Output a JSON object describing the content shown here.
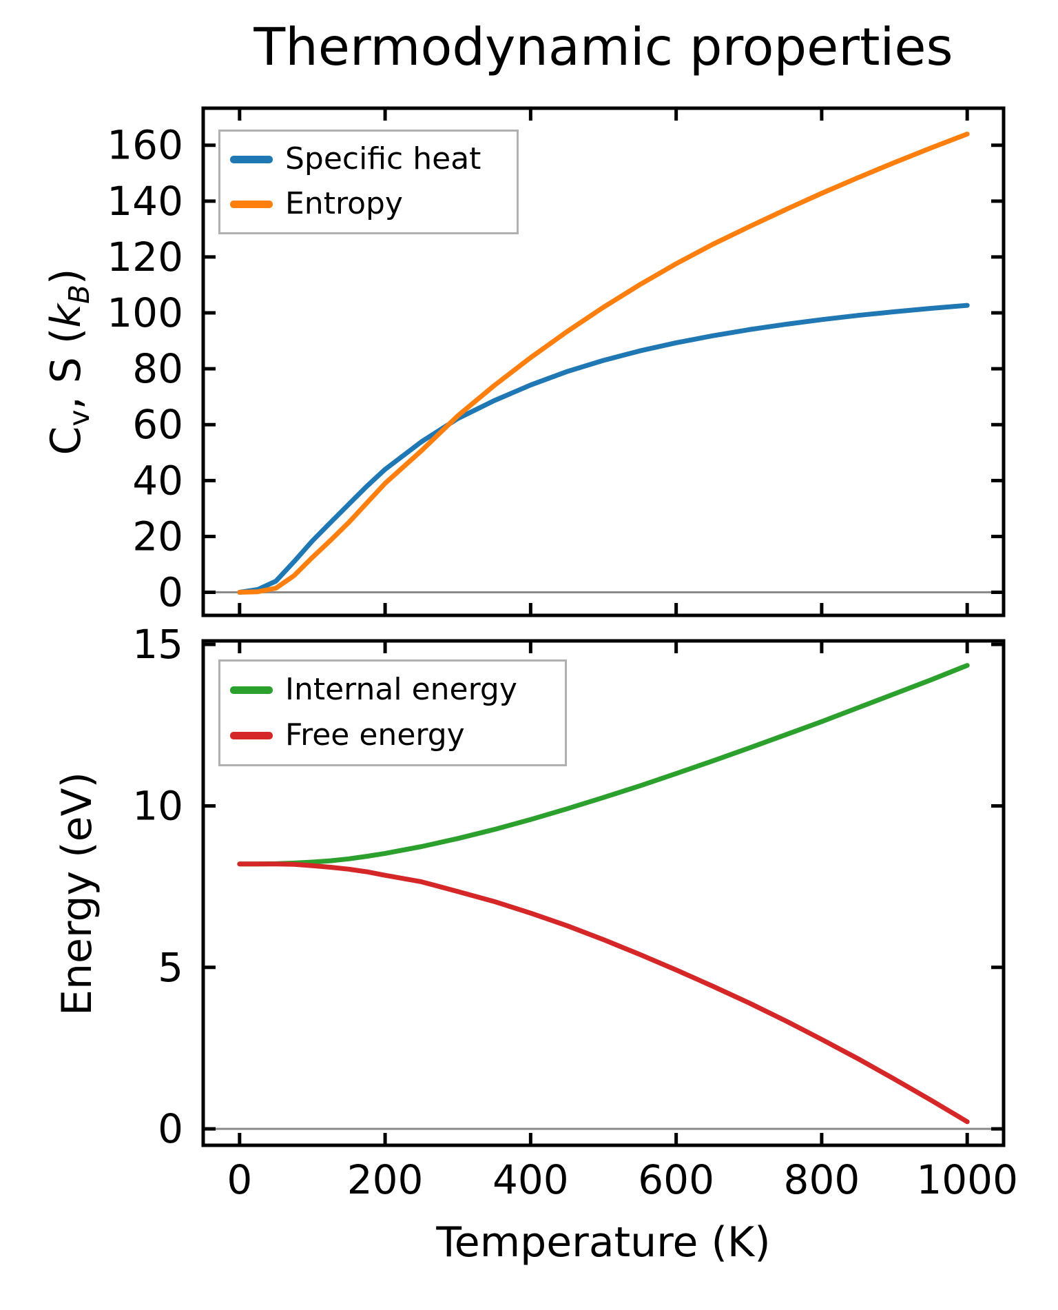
{
  "figure": {
    "title": "Thermodynamic properties",
    "xlabel": "Temperature (K)",
    "background": "#ffffff",
    "spine_color": "#000000",
    "zero_line_color": "#8a8a8a"
  },
  "ylabel_top": {
    "base": "C",
    "base_sub": "v",
    "mid": ", S (",
    "symbol": "k",
    "symbol_sub": "B",
    "close": ")"
  },
  "ylabel_bottom": "Energy (eV)",
  "chart_data": [
    {
      "type": "line",
      "title": "Thermodynamic properties",
      "xlabel": "Temperature (K)",
      "ylabel": "Cv, S (kB)",
      "x": [
        0,
        25,
        50,
        75,
        100,
        125,
        150,
        175,
        200,
        250,
        300,
        350,
        400,
        450,
        500,
        550,
        600,
        650,
        700,
        750,
        800,
        850,
        900,
        950,
        1000
      ],
      "series": [
        {
          "name": "Specific heat",
          "color": "#1f77b4",
          "values": [
            0,
            1,
            4,
            11,
            18.4,
            25,
            31.5,
            38,
            44,
            53.9,
            62.2,
            68.6,
            74.2,
            79,
            83,
            86.4,
            89.3,
            91.8,
            94,
            95.9,
            97.6,
            99.1,
            100.4,
            101.6,
            102.7
          ]
        },
        {
          "name": "Entropy",
          "color": "#ff7f0e",
          "values": [
            0,
            0.2,
            1.5,
            6,
            12.5,
            18.6,
            25,
            32,
            39,
            50.7,
            63.2,
            74,
            84,
            93.3,
            102,
            110.1,
            117.6,
            124.5,
            130.8,
            136.9,
            142.8,
            148.4,
            153.8,
            159,
            164
          ]
        }
      ],
      "xlim": [
        -50,
        1050
      ],
      "ylim": [
        -8.25,
        173.25
      ],
      "xticks": [
        0,
        200,
        400,
        600,
        800,
        1000
      ],
      "yticks": [
        0,
        20,
        40,
        60,
        80,
        100,
        120,
        140,
        160
      ],
      "x_tick_labels_visible": false,
      "grid": false,
      "zero_line": true,
      "legend_position": "upper left",
      "legend_entries": [
        "Specific heat",
        "Entropy"
      ],
      "crossing_point_note": "curves cross near T=293 K at about 61.5 kB"
    },
    {
      "type": "line",
      "title": "",
      "xlabel": "Temperature (K)",
      "ylabel": "Energy (eV)",
      "x": [
        0,
        25,
        50,
        75,
        100,
        125,
        150,
        175,
        200,
        250,
        300,
        350,
        400,
        450,
        500,
        550,
        600,
        650,
        700,
        750,
        800,
        850,
        900,
        950,
        1000
      ],
      "series": [
        {
          "name": "Internal energy",
          "color": "#2ca02c",
          "values": [
            8.2,
            8.2,
            8.21,
            8.23,
            8.26,
            8.3,
            8.36,
            8.44,
            8.53,
            8.74,
            8.99,
            9.27,
            9.58,
            9.91,
            10.26,
            10.62,
            11.0,
            11.39,
            11.79,
            12.2,
            12.61,
            13.04,
            13.47,
            13.9,
            14.35
          ]
        },
        {
          "name": "Free energy",
          "color": "#d62728",
          "values": [
            8.2,
            8.2,
            8.2,
            8.19,
            8.15,
            8.1,
            8.04,
            7.96,
            7.85,
            7.65,
            7.35,
            7.04,
            6.68,
            6.29,
            5.86,
            5.4,
            4.92,
            4.42,
            3.9,
            3.35,
            2.77,
            2.17,
            1.54,
            0.89,
            0.22
          ]
        }
      ],
      "xlim": [
        -50,
        1050
      ],
      "ylim": [
        -0.51,
        15.11
      ],
      "xticks": [
        0,
        200,
        400,
        600,
        800,
        1000
      ],
      "yticks": [
        0,
        5,
        10,
        15
      ],
      "x_tick_labels_visible": true,
      "grid": false,
      "zero_line": true,
      "legend_position": "upper left",
      "legend_entries": [
        "Internal energy",
        "Free energy"
      ]
    }
  ]
}
